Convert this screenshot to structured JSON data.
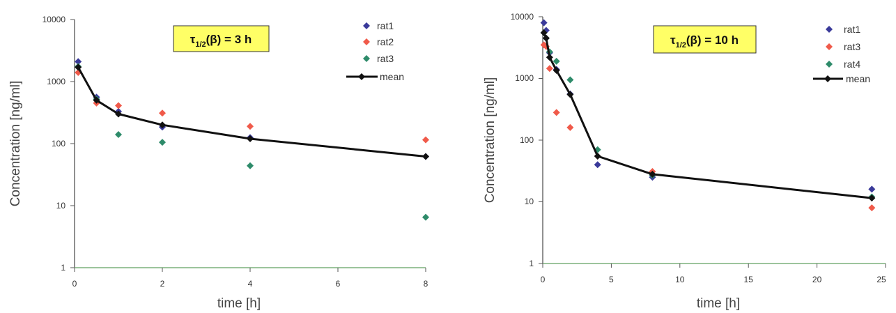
{
  "chart_data": [
    {
      "type": "scatter",
      "x_scale": "linear",
      "y_scale": "log",
      "xlabel": "time [h]",
      "ylabel": "Concentration [ng/ml]",
      "xlim": [
        0,
        8
      ],
      "ylim": [
        1,
        10000
      ],
      "x_ticks": [
        "0",
        "2",
        "4",
        "6",
        "8"
      ],
      "y_ticks": [
        "1",
        "10",
        "100",
        "1000",
        "10000"
      ],
      "legend_position": "top-right",
      "half_life_label": {
        "symbol": "τ",
        "subscript": "1/2",
        "text": "(β) = 3 h",
        "background": "#ffff66"
      },
      "series": [
        {
          "name": "rat1",
          "color": "#3a3a9a",
          "marker": "diamond",
          "x": [
            0.083,
            0.5,
            1,
            2,
            4,
            8
          ],
          "y": [
            2100,
            560,
            330,
            185,
            125,
            62
          ]
        },
        {
          "name": "rat2",
          "color": "#f05a4a",
          "marker": "diamond",
          "x": [
            0.083,
            0.5,
            1,
            2,
            4,
            8
          ],
          "y": [
            1400,
            450,
            410,
            310,
            190,
            115
          ]
        },
        {
          "name": "rat3",
          "color": "#2e8b6a",
          "marker": "diamond",
          "x": [
            0.083,
            0.5,
            1,
            2,
            4,
            8
          ],
          "y": [
            1750,
            520,
            140,
            105,
            44,
            6.5
          ]
        },
        {
          "name": "mean",
          "color": "#111111",
          "marker": "diamond-line",
          "x": [
            0.083,
            0.5,
            1,
            2,
            4,
            8
          ],
          "y": [
            1700,
            500,
            300,
            200,
            120,
            62
          ]
        }
      ]
    },
    {
      "type": "scatter",
      "x_scale": "linear",
      "y_scale": "log",
      "xlabel": "time [h]",
      "ylabel": "Concentration [ng/ml]",
      "xlim": [
        0,
        25
      ],
      "ylim": [
        1,
        10000
      ],
      "x_ticks": [
        "0",
        "5",
        "10",
        "15",
        "20",
        "25"
      ],
      "y_ticks": [
        "1",
        "10",
        "100",
        "1000",
        "10000"
      ],
      "legend_position": "top-right",
      "half_life_label": {
        "symbol": "τ",
        "subscript": "1/2",
        "text": "(β) = 10 h",
        "background": "#ffff66"
      },
      "series": [
        {
          "name": "rat1",
          "color": "#3a3a9a",
          "marker": "diamond",
          "x": [
            0.083,
            0.25,
            0.5,
            1,
            2,
            4,
            8,
            24
          ],
          "y": [
            8000,
            6000,
            2600,
            1400,
            560,
            40,
            25,
            16
          ]
        },
        {
          "name": "rat3",
          "color": "#f05a4a",
          "marker": "diamond",
          "x": [
            0.083,
            0.25,
            0.5,
            1,
            2,
            4,
            8,
            24
          ],
          "y": [
            3500,
            3300,
            1450,
            280,
            160,
            55,
            31,
            8
          ]
        },
        {
          "name": "rat4",
          "color": "#2e8b6a",
          "marker": "diamond",
          "x": [
            0.083,
            0.25,
            0.5,
            1,
            2,
            4,
            8,
            24
          ],
          "y": [
            5500,
            4500,
            2700,
            1900,
            950,
            70,
            27,
            12
          ]
        },
        {
          "name": "mean",
          "color": "#111111",
          "marker": "diamond-line",
          "x": [
            0.083,
            0.25,
            0.5,
            1,
            2,
            4,
            8,
            24
          ],
          "y": [
            5500,
            4500,
            2200,
            1350,
            550,
            55,
            28,
            11.5
          ]
        }
      ]
    }
  ]
}
